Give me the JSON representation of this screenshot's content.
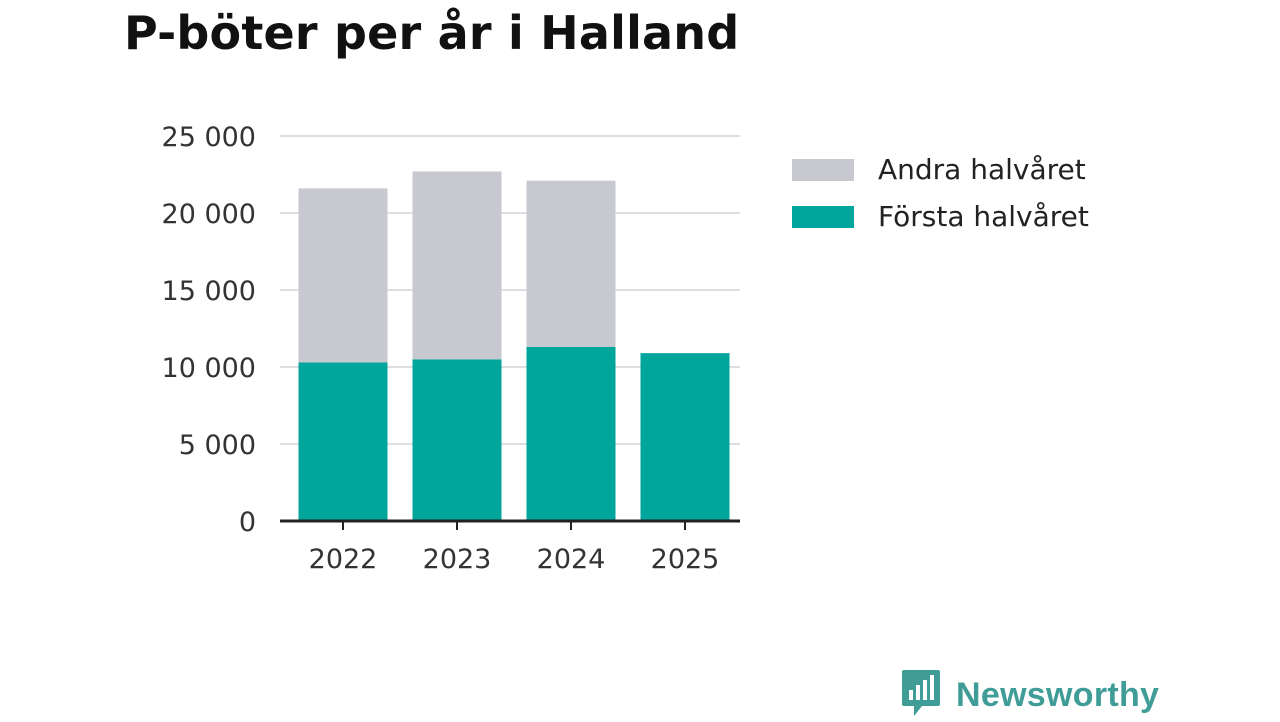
{
  "chart_data": {
    "type": "bar",
    "stacked": true,
    "title": "P-böter per år i Halland",
    "categories": [
      "2022",
      "2023",
      "2024",
      "2025"
    ],
    "series": [
      {
        "name": "Första halvåret",
        "color": "#00a59b",
        "values": [
          10300,
          10500,
          11300,
          10900
        ]
      },
      {
        "name": "Andra halvåret",
        "color": "#c8c8d0",
        "values": [
          11300,
          12200,
          10800,
          0
        ]
      }
    ],
    "ylim": [
      0,
      25000
    ],
    "yticks": [
      0,
      5000,
      10000,
      15000,
      20000,
      25000
    ],
    "ytick_labels": [
      "0",
      "5 000",
      "10 000",
      "15 000",
      "20 000",
      "25 000"
    ],
    "xlabel": "",
    "ylabel": "",
    "grid": true,
    "legend_position": "right"
  },
  "legend": {
    "items": [
      {
        "label": "Andra halvåret",
        "color": "#c8c8d0"
      },
      {
        "label": "Första halvåret",
        "color": "#00a59b"
      }
    ]
  },
  "brand": {
    "name": "Newsworthy",
    "color": "#3f9c96",
    "icon": "newsworthy-logo-icon"
  }
}
